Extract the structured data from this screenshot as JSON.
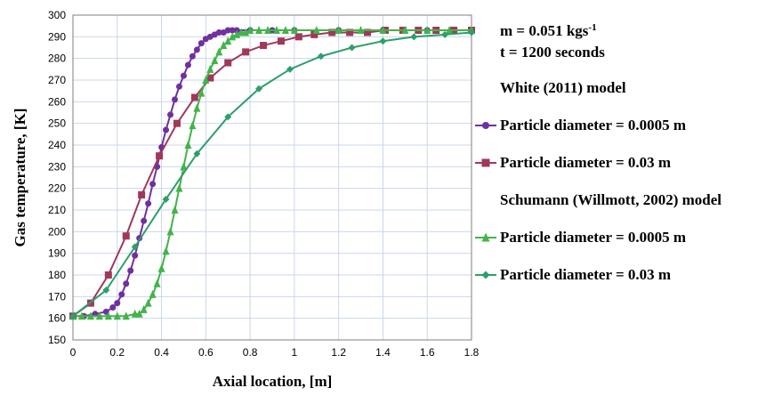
{
  "chart_data": {
    "type": "line",
    "title": "",
    "xlabel": "Axial location, [m]",
    "ylabel": "Gas temperature, [K]",
    "xlim": [
      0,
      1.8
    ],
    "ylim": [
      150,
      300
    ],
    "xticks": [
      "0",
      "0.2",
      "0.4",
      "0.6",
      "0.8",
      "1",
      "1.2",
      "1.4",
      "1.6",
      "1.8"
    ],
    "yticks": [
      "150",
      "160",
      "170",
      "180",
      "190",
      "200",
      "210",
      "220",
      "230",
      "240",
      "250",
      "260",
      "270",
      "280",
      "290",
      "300"
    ],
    "grid": true,
    "legend_position": "right",
    "annotations": {
      "mass_flow_prefix": "m = 0.051 kgs",
      "mass_flow_exp": "-1",
      "time": "t = 1200 seconds"
    },
    "legend_groups": [
      {
        "heading": "White (2011) model"
      },
      {
        "heading": "Schumann (Willmott, 2002) model"
      }
    ],
    "series": [
      {
        "name": "Particle diameter = 0.0005 m",
        "group": 0,
        "color": "#7030a0",
        "marker": "circle",
        "x": [
          0,
          0.05,
          0.1,
          0.15,
          0.18,
          0.2,
          0.22,
          0.24,
          0.26,
          0.28,
          0.3,
          0.32,
          0.34,
          0.36,
          0.38,
          0.4,
          0.42,
          0.44,
          0.46,
          0.48,
          0.5,
          0.52,
          0.54,
          0.56,
          0.58,
          0.6,
          0.62,
          0.64,
          0.66,
          0.68,
          0.7,
          0.72,
          0.74,
          0.8,
          0.9,
          1.0,
          1.2,
          1.4,
          1.6,
          1.8
        ],
        "y": [
          161,
          161,
          162,
          163,
          165,
          167,
          171,
          176,
          182,
          189,
          197,
          205,
          213,
          222,
          230,
          239,
          247,
          254,
          261,
          267,
          272,
          277,
          281,
          284,
          287,
          289,
          290,
          291,
          292,
          292,
          293,
          293,
          293,
          293,
          293,
          293,
          293,
          293,
          293,
          293
        ]
      },
      {
        "name": "Particle diameter = 0.03 m",
        "group": 0,
        "color": "#a0385a",
        "marker": "square",
        "x": [
          0,
          0.08,
          0.16,
          0.24,
          0.31,
          0.39,
          0.47,
          0.55,
          0.62,
          0.7,
          0.78,
          0.86,
          0.94,
          1.02,
          1.09,
          1.17,
          1.25,
          1.33,
          1.41,
          1.49,
          1.56,
          1.64,
          1.72,
          1.8
        ],
        "y": [
          161,
          167,
          180,
          198,
          217,
          235,
          250,
          262,
          271,
          278,
          283,
          286,
          288,
          290,
          291,
          292,
          292,
          292,
          293,
          293,
          293,
          293,
          293,
          293
        ]
      },
      {
        "name": "Particle diameter = 0.0005 m",
        "group": 1,
        "color": "#43b34a",
        "marker": "triangle",
        "x": [
          0,
          0.04,
          0.08,
          0.12,
          0.16,
          0.2,
          0.24,
          0.28,
          0.3,
          0.32,
          0.34,
          0.36,
          0.38,
          0.4,
          0.42,
          0.44,
          0.46,
          0.48,
          0.5,
          0.52,
          0.54,
          0.56,
          0.58,
          0.6,
          0.62,
          0.64,
          0.66,
          0.68,
          0.7,
          0.72,
          0.74,
          0.76,
          0.78,
          0.8,
          0.84,
          0.88,
          0.92,
          0.96,
          1.0,
          1.1,
          1.2,
          1.3,
          1.4,
          1.5,
          1.6,
          1.7,
          1.8
        ],
        "y": [
          161,
          161,
          161,
          161,
          161,
          161,
          161,
          162,
          162,
          164,
          167,
          171,
          176,
          183,
          191,
          200,
          210,
          220,
          230,
          240,
          249,
          257,
          264,
          270,
          275,
          279,
          283,
          286,
          288,
          290,
          291,
          292,
          292,
          293,
          293,
          293,
          293,
          293,
          293,
          293,
          293,
          293,
          293,
          293,
          293,
          293,
          293
        ]
      },
      {
        "name": "Particle diameter = 0.03 m",
        "group": 1,
        "color": "#2e9e6b",
        "marker": "diamond",
        "x": [
          0,
          0.15,
          0.28,
          0.42,
          0.56,
          0.7,
          0.84,
          0.98,
          1.12,
          1.26,
          1.4,
          1.54,
          1.68,
          1.8
        ],
        "y": [
          161,
          173,
          193,
          215,
          236,
          253,
          266,
          275,
          281,
          285,
          288,
          290,
          291,
          292
        ]
      }
    ]
  }
}
